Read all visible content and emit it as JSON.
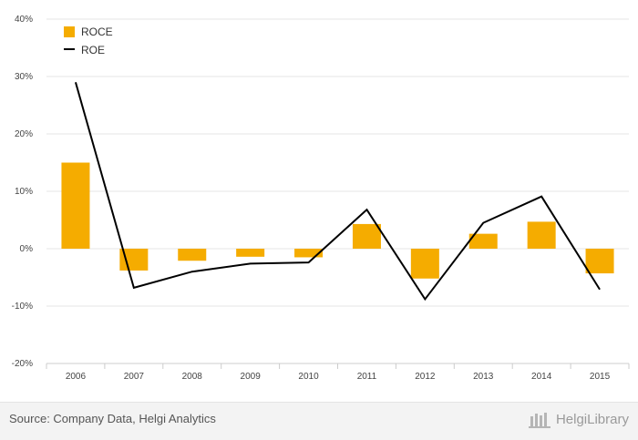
{
  "chart_data": {
    "type": "bar",
    "categories": [
      "2006",
      "2007",
      "2008",
      "2009",
      "2010",
      "2011",
      "2012",
      "2013",
      "2014",
      "2015"
    ],
    "series": [
      {
        "name": "ROCE",
        "type": "bar",
        "color": "#f5ac00",
        "values": [
          15.0,
          -3.8,
          -2.1,
          -1.4,
          -1.5,
          4.3,
          -5.2,
          2.6,
          4.7,
          -4.3
        ]
      },
      {
        "name": "ROE",
        "type": "line",
        "color": "#000000",
        "values": [
          29.0,
          -6.8,
          -4.0,
          -2.6,
          -2.4,
          6.8,
          -8.8,
          4.5,
          9.1,
          -7.1
        ]
      }
    ],
    "ylim": [
      -20,
      40
    ],
    "yticks": [
      -20,
      -10,
      0,
      10,
      20,
      30,
      40
    ],
    "ytick_labels": [
      "-20%",
      "-10%",
      "0%",
      "10%",
      "20%",
      "30%",
      "40%"
    ],
    "grid": true,
    "legend": "top-left"
  },
  "footer": {
    "source": "Source: Company Data, Helgi Analytics",
    "brand": "HelgiLibrary"
  }
}
